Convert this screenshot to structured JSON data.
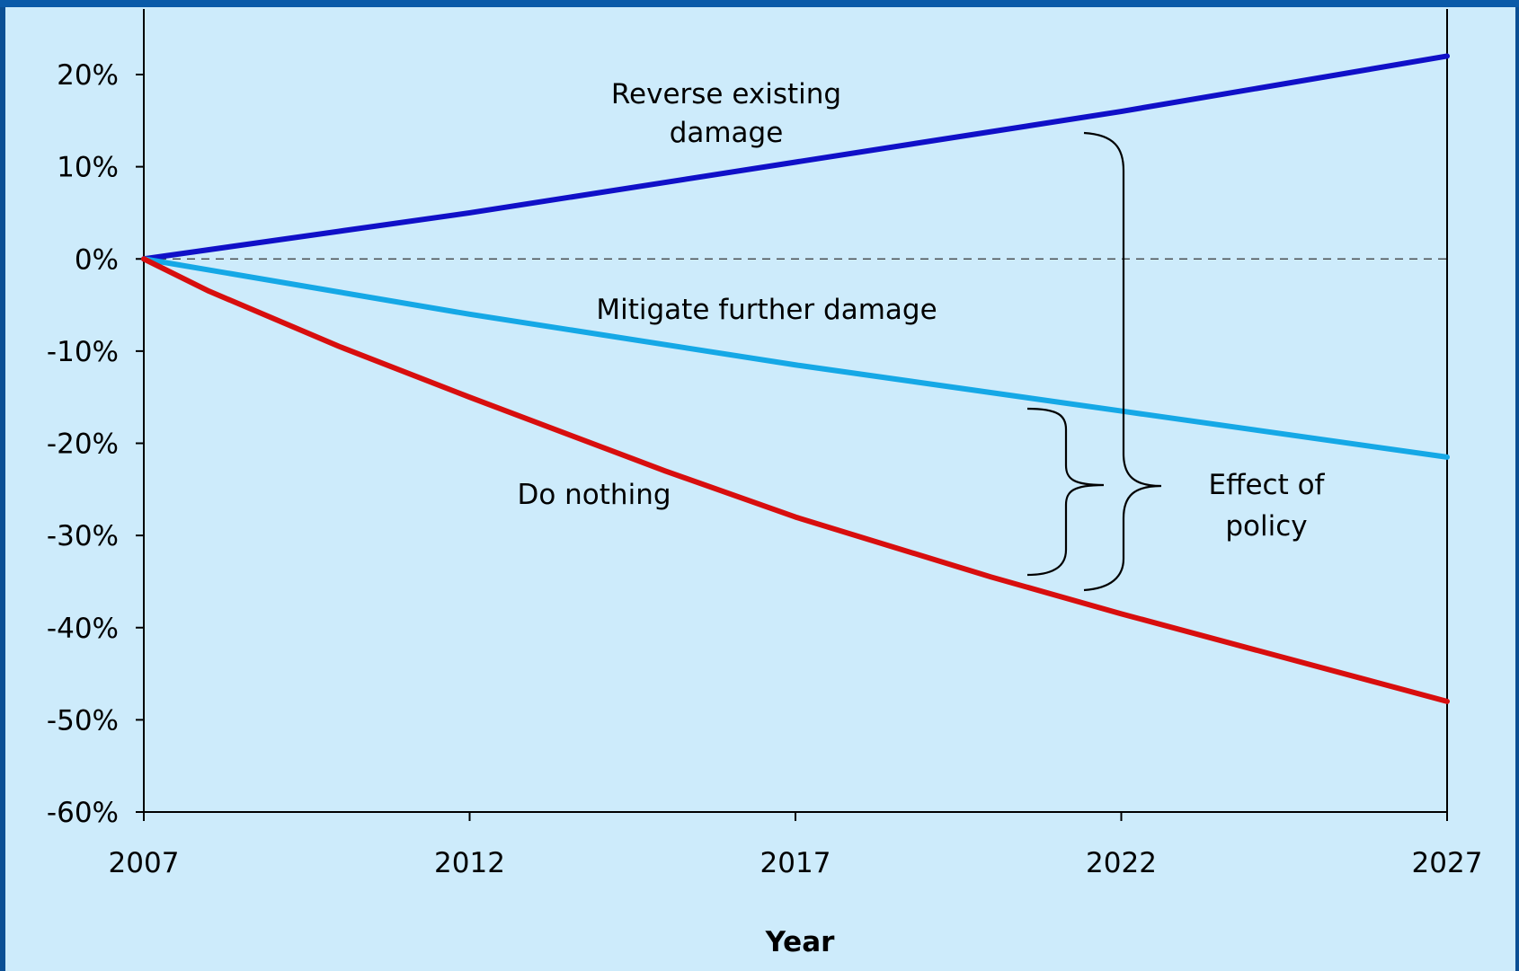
{
  "chart_data": {
    "type": "line",
    "xlabel": "Year",
    "ylabel": "",
    "xlim": [
      2007,
      2027
    ],
    "ylim": [
      -60,
      20
    ],
    "x_ticks": [
      2007,
      2012,
      2017,
      2022,
      2027
    ],
    "y_ticks": [
      20,
      10,
      0,
      -10,
      -20,
      -30,
      -40,
      -50,
      -60
    ],
    "y_tick_labels": [
      "20%",
      "10%",
      "0%",
      "-10%",
      "-20%",
      "-30%",
      "-40%",
      "-50%",
      "-60%"
    ],
    "reference_line": {
      "y": 0,
      "style": "dashed"
    },
    "grid": false,
    "series": [
      {
        "name": "Reverse existing damage",
        "color": "#1010c8",
        "x": [
          2007,
          2012,
          2017,
          2022,
          2027
        ],
        "values": [
          0,
          5,
          10.5,
          16,
          22
        ]
      },
      {
        "name": "Mitigate further damage",
        "color": "#15a8e6",
        "x": [
          2007,
          2012,
          2017,
          2022,
          2027
        ],
        "values": [
          0,
          -6,
          -11.5,
          -16.5,
          -21.5
        ]
      },
      {
        "name": "Do nothing",
        "color": "#d80e0e",
        "x": [
          2007,
          2008,
          2010,
          2012,
          2015,
          2017,
          2020,
          2022,
          2027
        ],
        "values": [
          0,
          -3.5,
          -9.5,
          -15,
          -23,
          -28,
          -34.5,
          -38.5,
          -48
        ]
      }
    ],
    "annotations": [
      {
        "id": "reverse",
        "lines": [
          "Reverse existing",
          "damage"
        ]
      },
      {
        "id": "mitigate",
        "lines": [
          "Mitigate further damage"
        ]
      },
      {
        "id": "nothing",
        "lines": [
          "Do nothing"
        ]
      },
      {
        "id": "effect",
        "lines": [
          "Effect of",
          "policy"
        ]
      }
    ]
  }
}
